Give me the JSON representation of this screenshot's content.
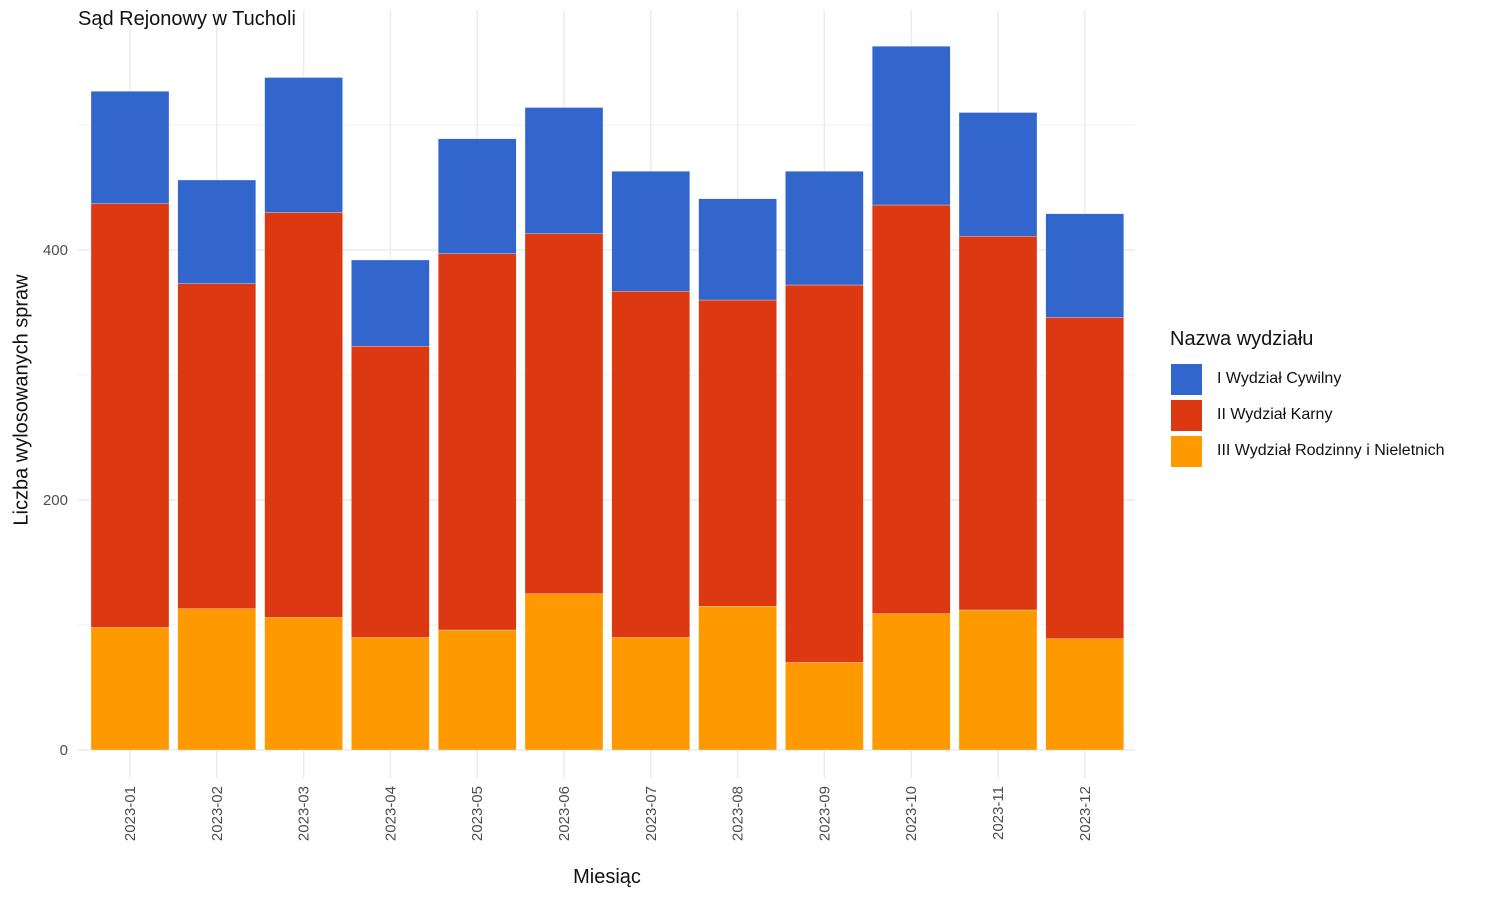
{
  "chart_data": {
    "type": "bar",
    "stacked": true,
    "title": "Sąd Rejonowy w Tucholi",
    "xlabel": "Miesiąc",
    "ylabel": "Liczba wylosowanych spraw",
    "ylim": [
      0,
      590
    ],
    "yticks": [
      "0",
      "200",
      "400"
    ],
    "grid": true,
    "categories": [
      "2023-01",
      "2023-02",
      "2023-03",
      "2023-04",
      "2023-05",
      "2023-06",
      "2023-07",
      "2023-08",
      "2023-09",
      "2023-10",
      "2023-11",
      "2023-12"
    ],
    "legend": {
      "title": "Nazwa wydziału",
      "placement": "right"
    },
    "series": [
      {
        "name": "III Wydział Rodzinny i Nieletnich",
        "color": "#FF9900",
        "values": [
          98,
          113,
          106,
          90,
          96,
          125,
          90,
          115,
          70,
          109,
          112,
          89
        ]
      },
      {
        "name": "II Wydział Karny",
        "color": "#DC3912",
        "values": [
          339,
          260,
          324,
          233,
          301,
          288,
          277,
          245,
          302,
          327,
          299,
          257
        ]
      },
      {
        "name": "I Wydział Cywilny",
        "color": "#3366CC",
        "values": [
          90,
          83,
          108,
          69,
          92,
          101,
          96,
          81,
          91,
          127,
          99,
          83
        ]
      }
    ]
  }
}
